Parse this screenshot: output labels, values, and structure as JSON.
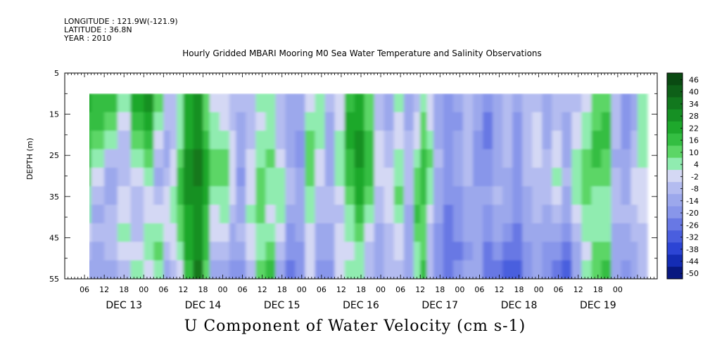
{
  "header": {
    "longitude": "LONGITUDE : 121.9W(-121.9)",
    "latitude": "LATITUDE : 36.8N",
    "year": "YEAR : 2010"
  },
  "chart_data": {
    "type": "heatmap",
    "title": "Hourly Gridded MBARI Mooring M0 Sea Water Temperature and Salinity Observations",
    "subtitle": "U Component of Water Velocity (cm s-1)",
    "xlabel": "",
    "ylabel": "DEPTH (m)",
    "yticks": [
      5,
      15,
      25,
      35,
      45,
      55
    ],
    "ylim": [
      55,
      5
    ],
    "xlim_hours": [
      0,
      168
    ],
    "hour_ticks": [
      "06",
      "12",
      "18",
      "00",
      "06",
      "12",
      "18",
      "00",
      "06",
      "12",
      "18",
      "00",
      "06",
      "12",
      "18",
      "00",
      "06",
      "12",
      "18",
      "00",
      "06",
      "12",
      "18",
      "00",
      "06",
      "12",
      "18",
      "00"
    ],
    "day_labels": [
      "DEC 13",
      "DEC 14",
      "DEC 15",
      "DEC 16",
      "DEC 17",
      "DEC 18",
      "DEC 19"
    ],
    "data_depth_range": [
      10,
      55
    ],
    "colorbar": {
      "levels": [
        "46",
        "40",
        "34",
        "28",
        "22",
        "16",
        "10",
        "4",
        "-2",
        "-8",
        "-14",
        "-20",
        "-26",
        "-32",
        "-38",
        "-44",
        "-50"
      ],
      "colors": [
        "#0a4a12",
        "#0e6018",
        "#12781e",
        "#169024",
        "#1ea82c",
        "#34be42",
        "#5cd666",
        "#90ecb0",
        "#d4d8f4",
        "#b4bcf0",
        "#9ca8ec",
        "#8896ea",
        "#6878e4",
        "#4a5ede",
        "#2c44d4",
        "#142cb4",
        "#081880"
      ]
    },
    "columns": [
      {
        "t": 0,
        "u": [
          22,
          20,
          18,
          16,
          12,
          8,
          4,
          -2,
          -8,
          -14
        ]
      },
      {
        "t": 2,
        "u": [
          20,
          16,
          12,
          6,
          0,
          -6,
          -10,
          -8,
          -12,
          -14
        ]
      },
      {
        "t": 6,
        "u": [
          16,
          10,
          4,
          -4,
          -10,
          -12,
          -8,
          -4,
          -8,
          -10
        ]
      },
      {
        "t": 10,
        "u": [
          6,
          0,
          -6,
          -8,
          -6,
          -2,
          2,
          4,
          0,
          -4
        ]
      },
      {
        "t": 14,
        "u": [
          26,
          20,
          12,
          4,
          -2,
          -6,
          -8,
          -4,
          0,
          4
        ]
      },
      {
        "t": 18,
        "u": [
          30,
          26,
          18,
          10,
          4,
          -2,
          2,
          8,
          6,
          0
        ]
      },
      {
        "t": 21,
        "u": [
          10,
          4,
          -2,
          -8,
          -10,
          -6,
          0,
          6,
          10,
          4
        ]
      },
      {
        "t": 24,
        "u": [
          -4,
          -8,
          -12,
          -10,
          -6,
          -2,
          2,
          0,
          -6,
          -10
        ]
      },
      {
        "t": 26,
        "u": [
          -6,
          -8,
          -6,
          -2,
          2,
          6,
          4,
          2,
          -2,
          -6
        ]
      },
      {
        "t": 28,
        "u": [
          4,
          6,
          8,
          12,
          16,
          18,
          14,
          10,
          4,
          -2
        ]
      },
      {
        "t": 30,
        "u": [
          22,
          24,
          26,
          30,
          30,
          28,
          24,
          22,
          24,
          20
        ]
      },
      {
        "t": 33,
        "u": [
          28,
          30,
          32,
          34,
          34,
          32,
          30,
          28,
          30,
          34
        ]
      },
      {
        "t": 36,
        "u": [
          10,
          14,
          18,
          24,
          26,
          24,
          20,
          16,
          18,
          14
        ]
      },
      {
        "t": 38,
        "u": [
          0,
          4,
          8,
          12,
          10,
          6,
          2,
          0,
          -4,
          -10
        ]
      },
      {
        "t": 41,
        "u": [
          -2,
          2,
          6,
          10,
          12,
          8,
          4,
          -2,
          -8,
          -14
        ]
      },
      {
        "t": 44,
        "u": [
          -6,
          -4,
          -2,
          0,
          2,
          -2,
          -6,
          -10,
          -14,
          -18
        ]
      },
      {
        "t": 46,
        "u": [
          -8,
          -10,
          -12,
          -14,
          -16,
          -14,
          -10,
          -8,
          -12,
          -16
        ]
      },
      {
        "t": 49,
        "u": [
          -6,
          -8,
          -4,
          -2,
          0,
          2,
          4,
          2,
          -2,
          -6
        ]
      },
      {
        "t": 52,
        "u": [
          4,
          2,
          6,
          8,
          10,
          12,
          10,
          6,
          8,
          12
        ]
      },
      {
        "t": 55,
        "u": [
          8,
          6,
          8,
          10,
          6,
          4,
          2,
          6,
          10,
          16
        ]
      },
      {
        "t": 58,
        "u": [
          -6,
          -8,
          -4,
          0,
          4,
          8,
          6,
          2,
          -4,
          -10
        ]
      },
      {
        "t": 61,
        "u": [
          -10,
          -12,
          -14,
          -10,
          -6,
          -8,
          -12,
          -16,
          -20,
          -22
        ]
      },
      {
        "t": 64,
        "u": [
          -12,
          -14,
          -16,
          -18,
          -14,
          -12,
          -10,
          -12,
          -16,
          -20
        ]
      },
      {
        "t": 67,
        "u": [
          2,
          6,
          10,
          14,
          12,
          8,
          4,
          0,
          -2,
          2
        ]
      },
      {
        "t": 70,
        "u": [
          8,
          6,
          4,
          2,
          0,
          -4,
          -8,
          -12,
          -14,
          -16
        ]
      },
      {
        "t": 73,
        "u": [
          -6,
          -10,
          -12,
          -14,
          -10,
          -6,
          -8,
          -10,
          -14,
          -18
        ]
      },
      {
        "t": 76,
        "u": [
          -2,
          2,
          6,
          8,
          4,
          0,
          -4,
          -2,
          2,
          0
        ]
      },
      {
        "t": 79,
        "u": [
          18,
          22,
          24,
          20,
          16,
          12,
          8,
          4,
          2,
          6
        ]
      },
      {
        "t": 82,
        "u": [
          24,
          26,
          28,
          30,
          26,
          22,
          16,
          10,
          6,
          4
        ]
      },
      {
        "t": 85,
        "u": [
          10,
          14,
          16,
          18,
          16,
          12,
          6,
          0,
          -4,
          -6
        ]
      },
      {
        "t": 88,
        "u": [
          -8,
          -6,
          -2,
          2,
          0,
          -4,
          -8,
          -12,
          -14,
          -12
        ]
      },
      {
        "t": 91,
        "u": [
          -10,
          -12,
          -8,
          -4,
          0,
          2,
          -2,
          -6,
          -8,
          -6
        ]
      },
      {
        "t": 94,
        "u": [
          4,
          0,
          2,
          6,
          8,
          10,
          6,
          2,
          -2,
          -4
        ]
      },
      {
        "t": 97,
        "u": [
          -10,
          -12,
          -8,
          -4,
          -6,
          -8,
          -10,
          -12,
          -14,
          -12
        ]
      },
      {
        "t": 100,
        "u": [
          -4,
          -2,
          2,
          6,
          10,
          14,
          16,
          12,
          8,
          6
        ]
      },
      {
        "t": 102,
        "u": [
          6,
          10,
          14,
          18,
          20,
          16,
          12,
          10,
          12,
          16
        ]
      },
      {
        "t": 104,
        "u": [
          -2,
          2,
          6,
          10,
          8,
          4,
          0,
          -4,
          -6,
          -4
        ]
      },
      {
        "t": 106,
        "u": [
          -14,
          -12,
          -10,
          -8,
          -10,
          -12,
          -14,
          -16,
          -18,
          -16
        ]
      },
      {
        "t": 109,
        "u": [
          -18,
          -20,
          -18,
          -16,
          -18,
          -20,
          -22,
          -24,
          -26,
          -24
        ]
      },
      {
        "t": 112,
        "u": [
          -14,
          -16,
          -14,
          -12,
          -14,
          -16,
          -18,
          -20,
          -22,
          -20
        ]
      },
      {
        "t": 115,
        "u": [
          -8,
          -6,
          -4,
          -6,
          -8,
          -10,
          -12,
          -14,
          -16,
          -14
        ]
      },
      {
        "t": 118,
        "u": [
          -12,
          -14,
          -16,
          -18,
          -16,
          -14,
          -12,
          -10,
          -12,
          -14
        ]
      },
      {
        "t": 121,
        "u": [
          -20,
          -22,
          -24,
          -20,
          -16,
          -14,
          -16,
          -20,
          -24,
          -26
        ]
      },
      {
        "t": 124,
        "u": [
          -10,
          -12,
          -14,
          -12,
          -10,
          -8,
          -10,
          -14,
          -18,
          -22
        ]
      },
      {
        "t": 127,
        "u": [
          -6,
          -4,
          -6,
          -8,
          -10,
          -12,
          -14,
          -18,
          -22,
          -28
        ]
      },
      {
        "t": 130,
        "u": [
          -14,
          -16,
          -18,
          -20,
          -18,
          -16,
          -18,
          -22,
          -26,
          -30
        ]
      },
      {
        "t": 133,
        "u": [
          -8,
          -6,
          -4,
          -6,
          -8,
          -10,
          -12,
          -14,
          -18,
          -20
        ]
      },
      {
        "t": 136,
        "u": [
          -4,
          -2,
          0,
          -2,
          -4,
          -6,
          -8,
          -10,
          -12,
          -14
        ]
      },
      {
        "t": 139,
        "u": [
          -10,
          -12,
          -10,
          -8,
          -6,
          -8,
          -10,
          -14,
          -16,
          -18
        ]
      },
      {
        "t": 142,
        "u": [
          -6,
          -4,
          -2,
          2,
          4,
          0,
          -4,
          -10,
          -16,
          -22
        ]
      },
      {
        "t": 145,
        "u": [
          -8,
          -10,
          -12,
          -10,
          -8,
          -10,
          -14,
          -18,
          -24,
          -30
        ]
      },
      {
        "t": 148,
        "u": [
          -4,
          -2,
          0,
          4,
          8,
          4,
          0,
          -4,
          -10,
          -14
        ]
      },
      {
        "t": 151,
        "u": [
          2,
          4,
          6,
          10,
          12,
          10,
          6,
          4,
          2,
          4
        ]
      },
      {
        "t": 154,
        "u": [
          10,
          14,
          18,
          16,
          12,
          8,
          4,
          8,
          10,
          12
        ]
      },
      {
        "t": 157,
        "u": [
          12,
          16,
          18,
          14,
          10,
          6,
          4,
          8,
          12,
          16
        ]
      },
      {
        "t": 160,
        "u": [
          -4,
          -6,
          -8,
          -10,
          -8,
          -6,
          -8,
          -10,
          -12,
          -10
        ]
      },
      {
        "t": 163,
        "u": [
          -16,
          -18,
          -16,
          -14,
          -12,
          -10,
          -8,
          -12,
          -14,
          -16
        ]
      },
      {
        "t": 166,
        "u": [
          -12,
          -10,
          -8,
          -6,
          -2,
          0,
          -4,
          -8,
          -10,
          -12
        ]
      },
      {
        "t": 168,
        "u": [
          6,
          8,
          6,
          4,
          2,
          0,
          -2,
          -4,
          -6,
          -8
        ]
      }
    ]
  }
}
